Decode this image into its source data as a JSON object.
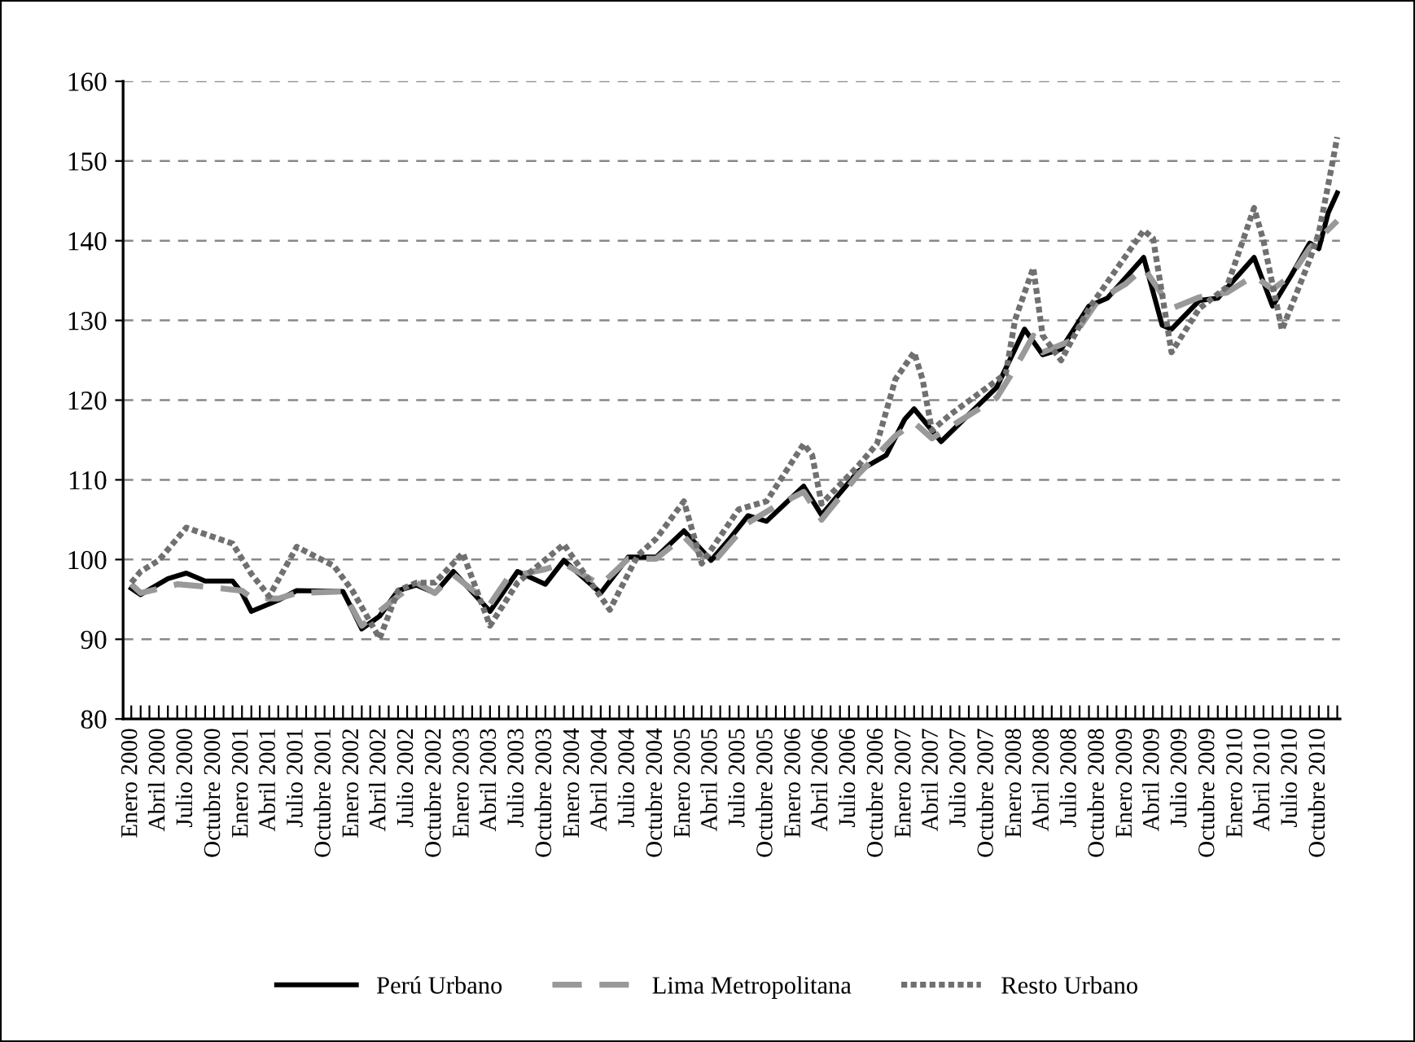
{
  "chart_data": {
    "type": "line",
    "ylim": [
      80,
      160
    ],
    "yticks": [
      80,
      90,
      100,
      110,
      120,
      130,
      140,
      150,
      160
    ],
    "xlim": [
      "1999-12-05",
      "2010-12-10"
    ],
    "xticks": [
      {
        "value": "2000-01",
        "label": "Enero 2000"
      },
      {
        "value": "2000-02",
        "label": null
      },
      {
        "value": "2000-03",
        "label": null
      },
      {
        "value": "2000-04",
        "label": "Abril 2000"
      },
      {
        "value": "2000-05",
        "label": null
      },
      {
        "value": "2000-06",
        "label": null
      },
      {
        "value": "2000-07",
        "label": "Julio 2000"
      },
      {
        "value": "2000-08",
        "label": null
      },
      {
        "value": "2000-09",
        "label": null
      },
      {
        "value": "2000-10",
        "label": "Octubre 2000"
      },
      {
        "value": "2000-11",
        "label": null
      },
      {
        "value": "2000-12",
        "label": null
      },
      {
        "value": "2001-01",
        "label": "Enero 2001"
      },
      {
        "value": "2001-02",
        "label": null
      },
      {
        "value": "2001-03",
        "label": null
      },
      {
        "value": "2001-04",
        "label": "Abril 2001"
      },
      {
        "value": "2001-05",
        "label": null
      },
      {
        "value": "2001-06",
        "label": null
      },
      {
        "value": "2001-07",
        "label": "Julio 2001"
      },
      {
        "value": "2001-08",
        "label": null
      },
      {
        "value": "2001-09",
        "label": null
      },
      {
        "value": "2001-10",
        "label": "Octubre 2001"
      },
      {
        "value": "2001-11",
        "label": null
      },
      {
        "value": "2001-12",
        "label": null
      },
      {
        "value": "2002-01",
        "label": "Enero 2002"
      },
      {
        "value": "2002-02",
        "label": null
      },
      {
        "value": "2002-03",
        "label": null
      },
      {
        "value": "2002-04",
        "label": "Abril 2002"
      },
      {
        "value": "2002-05",
        "label": null
      },
      {
        "value": "2002-06",
        "label": null
      },
      {
        "value": "2002-07",
        "label": "Julio 2002"
      },
      {
        "value": "2002-08",
        "label": null
      },
      {
        "value": "2002-09",
        "label": null
      },
      {
        "value": "2002-10",
        "label": "Octubre 2002"
      },
      {
        "value": "2002-11",
        "label": null
      },
      {
        "value": "2002-12",
        "label": null
      },
      {
        "value": "2003-01",
        "label": "Enero 2003"
      },
      {
        "value": "2003-02",
        "label": null
      },
      {
        "value": "2003-03",
        "label": null
      },
      {
        "value": "2003-04",
        "label": "Abril 2003"
      },
      {
        "value": "2003-05",
        "label": null
      },
      {
        "value": "2003-06",
        "label": null
      },
      {
        "value": "2003-07",
        "label": "Julio 2003"
      },
      {
        "value": "2003-08",
        "label": null
      },
      {
        "value": "2003-09",
        "label": null
      },
      {
        "value": "2003-10",
        "label": "Octubre 2003"
      },
      {
        "value": "2003-11",
        "label": null
      },
      {
        "value": "2003-12",
        "label": null
      },
      {
        "value": "2004-01",
        "label": "Enero 2004"
      },
      {
        "value": "2004-02",
        "label": null
      },
      {
        "value": "2004-03",
        "label": null
      },
      {
        "value": "2004-04",
        "label": "Abril 2004"
      },
      {
        "value": "2004-05",
        "label": null
      },
      {
        "value": "2004-06",
        "label": null
      },
      {
        "value": "2004-07",
        "label": "Julio 2004"
      },
      {
        "value": "2004-08",
        "label": null
      },
      {
        "value": "2004-09",
        "label": null
      },
      {
        "value": "2004-10",
        "label": "Octubre 2004"
      },
      {
        "value": "2004-11",
        "label": null
      },
      {
        "value": "2004-12",
        "label": null
      },
      {
        "value": "2005-01",
        "label": "Enero 2005"
      },
      {
        "value": "2005-02",
        "label": null
      },
      {
        "value": "2005-03",
        "label": null
      },
      {
        "value": "2005-04",
        "label": "Abril 2005"
      },
      {
        "value": "2005-05",
        "label": null
      },
      {
        "value": "2005-06",
        "label": null
      },
      {
        "value": "2005-07",
        "label": "Julio 2005"
      },
      {
        "value": "2005-08",
        "label": null
      },
      {
        "value": "2005-09",
        "label": null
      },
      {
        "value": "2005-10",
        "label": "Octubre 2005"
      },
      {
        "value": "2005-11",
        "label": null
      },
      {
        "value": "2005-12",
        "label": null
      },
      {
        "value": "2006-01",
        "label": "Enero 2006"
      },
      {
        "value": "2006-02",
        "label": null
      },
      {
        "value": "2006-03",
        "label": null
      },
      {
        "value": "2006-04",
        "label": "Abril 2006"
      },
      {
        "value": "2006-05",
        "label": null
      },
      {
        "value": "2006-06",
        "label": null
      },
      {
        "value": "2006-07",
        "label": "Julio 2006"
      },
      {
        "value": "2006-08",
        "label": null
      },
      {
        "value": "2006-09",
        "label": null
      },
      {
        "value": "2006-10",
        "label": "Octubre 2006"
      },
      {
        "value": "2006-11",
        "label": null
      },
      {
        "value": "2006-12",
        "label": null
      },
      {
        "value": "2007-01",
        "label": "Enero 2007"
      },
      {
        "value": "2007-02",
        "label": null
      },
      {
        "value": "2007-03",
        "label": null
      },
      {
        "value": "2007-04",
        "label": "Abril 2007"
      },
      {
        "value": "2007-05",
        "label": null
      },
      {
        "value": "2007-06",
        "label": null
      },
      {
        "value": "2007-07",
        "label": "Julio 2007"
      },
      {
        "value": "2007-08",
        "label": null
      },
      {
        "value": "2007-09",
        "label": null
      },
      {
        "value": "2007-10",
        "label": "Octubre 2007"
      },
      {
        "value": "2007-11",
        "label": null
      },
      {
        "value": "2007-12",
        "label": null
      },
      {
        "value": "2008-01",
        "label": "Enero 2008"
      },
      {
        "value": "2008-02",
        "label": null
      },
      {
        "value": "2008-03",
        "label": null
      },
      {
        "value": "2008-04",
        "label": "Abril 2008"
      },
      {
        "value": "2008-05",
        "label": null
      },
      {
        "value": "2008-06",
        "label": null
      },
      {
        "value": "2008-07",
        "label": "Julio 2008"
      },
      {
        "value": "2008-08",
        "label": null
      },
      {
        "value": "2008-09",
        "label": null
      },
      {
        "value": "2008-10",
        "label": "Octubre 2008"
      },
      {
        "value": "2008-11",
        "label": null
      },
      {
        "value": "2008-12",
        "label": null
      },
      {
        "value": "2009-01",
        "label": "Enero 2009"
      },
      {
        "value": "2009-02",
        "label": null
      },
      {
        "value": "2009-03",
        "label": null
      },
      {
        "value": "2009-04",
        "label": "Abril 2009"
      },
      {
        "value": "2009-05",
        "label": null
      },
      {
        "value": "2009-06",
        "label": null
      },
      {
        "value": "2009-07",
        "label": "Julio 2009"
      },
      {
        "value": "2009-08",
        "label": null
      },
      {
        "value": "2009-09",
        "label": null
      },
      {
        "value": "2009-10",
        "label": "Octubre 2009"
      },
      {
        "value": "2009-11",
        "label": null
      },
      {
        "value": "2009-12",
        "label": null
      },
      {
        "value": "2010-01",
        "label": "Enero 2010"
      },
      {
        "value": "2010-02",
        "label": null
      },
      {
        "value": "2010-03",
        "label": null
      },
      {
        "value": "2010-04",
        "label": "Abril 2010"
      },
      {
        "value": "2010-05",
        "label": null
      },
      {
        "value": "2010-06",
        "label": null
      },
      {
        "value": "2010-07",
        "label": "Julio 2010"
      },
      {
        "value": "2010-08",
        "label": null
      },
      {
        "value": "2010-09",
        "label": null
      },
      {
        "value": "2010-10",
        "label": "Octubre 2010"
      },
      {
        "value": "2010-11",
        "label": null
      },
      {
        "value": "2010-12",
        "label": null
      }
    ],
    "grid": "y",
    "legend": "bottom",
    "marker": "none",
    "series": [
      {
        "name": "Perú Urbano",
        "color": "#000000",
        "line_style": "solid",
        "x": [
          "2000-01",
          "2000-02",
          "2000-05",
          "2000-07",
          "2000-09",
          "2000-12",
          "2001-01",
          "2001-02",
          "2001-05",
          "2001-07",
          "2001-12",
          "2002-01",
          "2002-02",
          "2002-04",
          "2002-06",
          "2002-08",
          "2002-10",
          "2002-12",
          "2003-04",
          "2003-07",
          "2003-10",
          "2003-12",
          "2004-04",
          "2004-07",
          "2004-10",
          "2005-01",
          "2005-04",
          "2005-06",
          "2005-08",
          "2005-10",
          "2006-02",
          "2006-04",
          "2006-08",
          "2006-11",
          "2007-01",
          "2007-02",
          "2007-04",
          "2007-05",
          "2007-11",
          "2008-02",
          "2008-04",
          "2008-06",
          "2008-09",
          "2008-11",
          "2009-03",
          "2009-05",
          "2009-06",
          "2009-09",
          "2009-11",
          "2010-03",
          "2010-05",
          "2010-07",
          "2010-09",
          "2010-10",
          "2010-11",
          "2010-12"
        ],
        "values": [
          96.4,
          95.6,
          97.6,
          98.3,
          97.3,
          97.3,
          95.8,
          93.5,
          94.9,
          96.1,
          96.0,
          93.7,
          91.3,
          92.9,
          96.1,
          96.8,
          95.8,
          98.5,
          93.5,
          98.5,
          96.9,
          99.9,
          95.8,
          100.3,
          100.3,
          103.6,
          99.9,
          102.6,
          105.5,
          104.8,
          109.2,
          105.6,
          111.1,
          113.1,
          117.6,
          118.9,
          116.2,
          114.8,
          121.6,
          128.9,
          125.7,
          126.4,
          131.8,
          132.8,
          137.9,
          129.4,
          128.9,
          132.5,
          132.8,
          137.9,
          131.8,
          135.6,
          139.7,
          139.0,
          143.5,
          146.0
        ]
      },
      {
        "name": "Lima Metropolitana",
        "color": "#999999",
        "line_style": "dashed",
        "x": [
          "2000-01",
          "2000-02",
          "2000-06",
          "2000-09",
          "2001-01",
          "2001-02",
          "2001-05",
          "2001-07",
          "2001-12",
          "2002-02",
          "2002-06",
          "2002-08",
          "2002-10",
          "2002-12",
          "2003-04",
          "2003-06",
          "2003-10",
          "2003-12",
          "2004-04",
          "2004-07",
          "2004-10",
          "2005-01",
          "2005-04",
          "2005-06",
          "2005-08",
          "2005-11",
          "2006-02",
          "2006-04",
          "2006-08",
          "2006-12",
          "2007-02",
          "2007-04",
          "2007-11",
          "2008-01",
          "2008-03",
          "2008-04",
          "2008-07",
          "2008-10",
          "2009-01",
          "2009-03",
          "2009-06",
          "2009-09",
          "2009-12",
          "2010-03",
          "2010-05",
          "2010-07",
          "2010-09",
          "2010-12"
        ],
        "values": [
          96.9,
          95.8,
          96.9,
          96.6,
          96.1,
          95.2,
          95.1,
          95.8,
          96.0,
          91.7,
          95.4,
          97.1,
          95.8,
          98.1,
          94.4,
          97.8,
          98.8,
          99.5,
          96.8,
          100.1,
          100.1,
          102.9,
          99.3,
          102.0,
          104.6,
          106.7,
          108.5,
          105.0,
          110.7,
          115.5,
          117.2,
          115.2,
          120.3,
          124.0,
          128.1,
          126.0,
          127.4,
          132.5,
          134.6,
          136.6,
          131.5,
          132.9,
          133.5,
          135.6,
          133.9,
          135.6,
          139.1,
          142.5
        ]
      },
      {
        "name": "Resto Urbano",
        "color": "#707070",
        "line_style": "dotted",
        "x": [
          "2000-01",
          "2000-02",
          "2000-04",
          "2000-07",
          "2000-12",
          "2001-02",
          "2001-04",
          "2001-07",
          "2001-11",
          "2002-01",
          "2002-04",
          "2002-06",
          "2002-08",
          "2002-10",
          "2003-01",
          "2003-04",
          "2003-07",
          "2003-12",
          "2004-05",
          "2004-08",
          "2004-10",
          "2005-01",
          "2005-03",
          "2005-07",
          "2005-10",
          "2006-02",
          "2006-03",
          "2006-04",
          "2006-08",
          "2006-10",
          "2006-12",
          "2007-02",
          "2007-03",
          "2007-04",
          "2007-06",
          "2007-12",
          "2008-01",
          "2008-03",
          "2008-04",
          "2008-06",
          "2008-09",
          "2009-03",
          "2009-04",
          "2009-06",
          "2009-09",
          "2009-12",
          "2010-03",
          "2010-04",
          "2010-06",
          "2010-09",
          "2010-10",
          "2010-11",
          "2010-12"
        ],
        "values": [
          97.1,
          98.5,
          99.9,
          104.0,
          102.0,
          98.2,
          95.4,
          101.6,
          99.2,
          96.1,
          90.1,
          96.1,
          97.1,
          97.1,
          100.8,
          91.7,
          97.1,
          101.9,
          93.7,
          100.5,
          102.6,
          107.3,
          99.5,
          106.3,
          107.3,
          114.5,
          113.1,
          107.0,
          111.8,
          114.5,
          122.6,
          126.0,
          122.6,
          116.2,
          118.2,
          123.3,
          130.1,
          136.6,
          128.1,
          125.0,
          131.5,
          141.3,
          140.3,
          126.0,
          131.5,
          134.2,
          144.1,
          140.0,
          128.8,
          137.6,
          141.0,
          147.0,
          153.0
        ]
      }
    ]
  }
}
